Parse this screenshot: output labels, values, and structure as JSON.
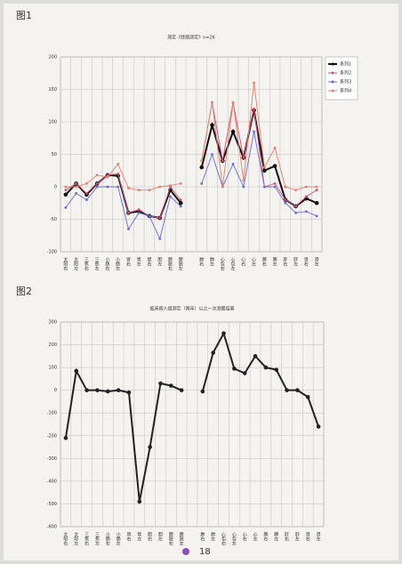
{
  "figure_labels": [
    "图1",
    "图2"
  ],
  "page_number": "18",
  "chart_data": [
    {
      "type": "line",
      "title": "测定《经络测定》n=26",
      "categories": [
        "太阳右",
        "太阳左",
        "三焦右",
        "三焦左",
        "小肠右",
        "小肠左",
        "胃右",
        "胃左",
        "胆右",
        "胆左",
        "膀胱右",
        "膀胱左",
        null,
        "肺右",
        "肺左",
        "心包右",
        "心包左",
        "心右",
        "心左",
        "脾右",
        "脾左",
        "肝右",
        "肝左",
        "肾右",
        "肾左"
      ],
      "series": [
        {
          "name": "系列1",
          "color": "#111111",
          "values": [
            -12,
            5,
            -12,
            5,
            18,
            17,
            -40,
            -38,
            -45,
            -48,
            -5,
            -25,
            null,
            30,
            95,
            40,
            85,
            45,
            118,
            25,
            32,
            -20,
            -30,
            -18,
            -25
          ]
        },
        {
          "name": "系列2",
          "color": "#d0507c",
          "values": [
            -5,
            5,
            -10,
            5,
            18,
            20,
            -40,
            -35,
            -45,
            -48,
            0,
            -20,
            null,
            40,
            130,
            40,
            130,
            45,
            120,
            0,
            5,
            -20,
            -30,
            -15,
            -5
          ]
        },
        {
          "name": "系列3",
          "color": "#6868d8",
          "values": [
            -32,
            -10,
            -20,
            0,
            0,
            0,
            -65,
            -40,
            -45,
            -80,
            -15,
            -30,
            null,
            5,
            50,
            0,
            35,
            0,
            85,
            0,
            0,
            -25,
            -40,
            -38,
            -45
          ]
        },
        {
          "name": "系列4",
          "color": "#e08068",
          "values": [
            0,
            0,
            5,
            18,
            15,
            35,
            -2,
            -5,
            -5,
            0,
            2,
            5,
            null,
            40,
            130,
            0,
            130,
            10,
            160,
            30,
            60,
            0,
            -5,
            0,
            0
          ]
        }
      ],
      "ylim": [
        -100,
        200
      ],
      "yticks": [
        -100,
        -50,
        0,
        50,
        100,
        150,
        200
      ],
      "grid": true,
      "legend": "right"
    },
    {
      "type": "line",
      "title": "临床病人组测定（两年）以之一次测量结果",
      "categories": [
        "太阳右",
        "太阳左",
        "三焦右",
        "三焦左",
        "小肠右",
        "小肠左",
        "胃右",
        "胃左",
        "胆右",
        "胆左",
        "膀胱右",
        "膀胱左",
        null,
        "肺右",
        "肺左",
        "心包右",
        "心包左",
        "心右",
        "心左",
        "脾右",
        "脾左",
        "肝右",
        "肝左",
        "肾右",
        "肾左"
      ],
      "values": [
        -210,
        85,
        0,
        0,
        -5,
        0,
        -10,
        -490,
        -250,
        30,
        20,
        0,
        null,
        -5,
        165,
        250,
        95,
        75,
        150,
        100,
        90,
        0,
        0,
        -30,
        -160
      ],
      "color": "#222222",
      "ylim": [
        -600,
        300
      ],
      "yticks": [
        -600,
        -500,
        -400,
        -300,
        -200,
        -100,
        0,
        100,
        200,
        300
      ],
      "grid": true
    }
  ]
}
